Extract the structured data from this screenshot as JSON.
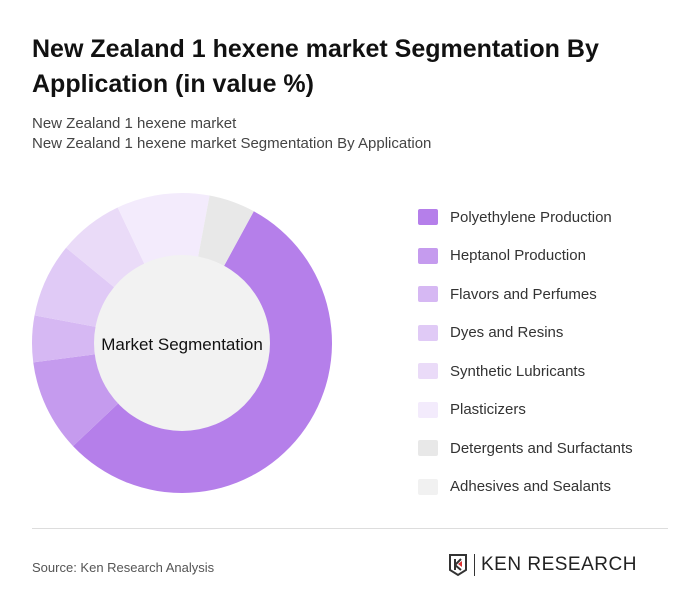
{
  "title": "New Zealand 1 hexene market Segmentation By Application (in value %)",
  "subtitle1": "New Zealand 1 hexene market",
  "subtitle2": "New Zealand 1 hexene market Segmentation By Application",
  "chart_data": {
    "type": "pie",
    "center_label": "Market Segmentation",
    "categories": [
      "Polyethylene Production",
      "Heptanol Production",
      "Flavors and Perfumes",
      "Dyes and Resins",
      "Synthetic Lubricants",
      "Plasticizers",
      "Detergents and Surfactants",
      "Adhesives and Sealants"
    ],
    "values": [
      55,
      10,
      5,
      8,
      7,
      10,
      5,
      0
    ],
    "colors": [
      "#b57fea",
      "#c59bee",
      "#d6b8f3",
      "#e0caf6",
      "#eadbf8",
      "#f3ebfc",
      "#e8e8e8",
      "#f1f1f1"
    ],
    "legend": "right"
  },
  "source": "Source: Ken Research Analysis",
  "logo": "KEN RESEARCH"
}
